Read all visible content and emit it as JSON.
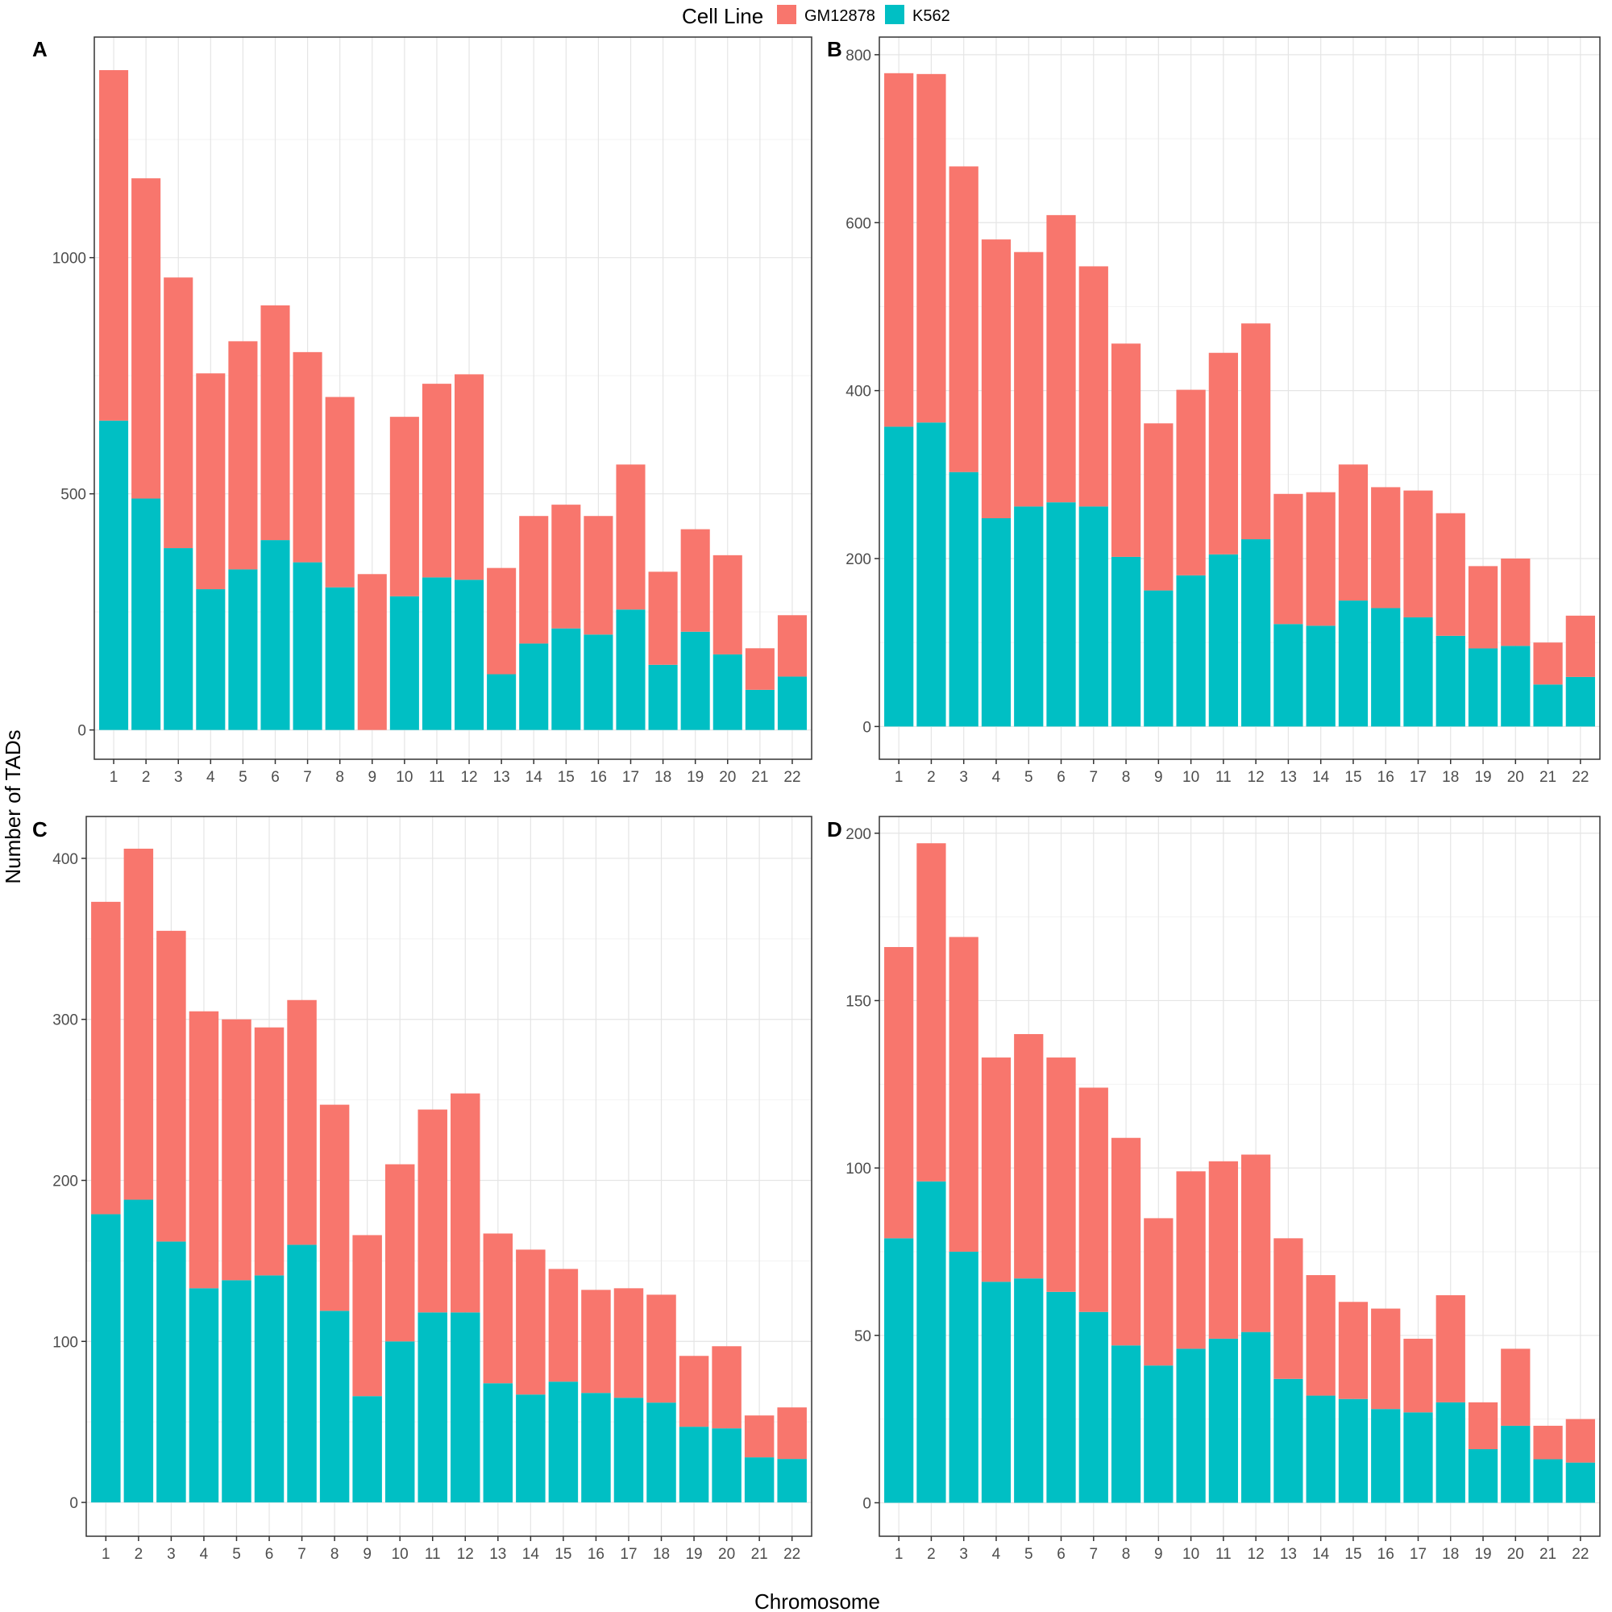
{
  "legend": {
    "title": "Cell Line",
    "items": [
      {
        "label": "GM12878",
        "color": "#F8766D"
      },
      {
        "label": "K562",
        "color": "#00BFC4"
      }
    ]
  },
  "axes": {
    "xlabel": "Chromosome",
    "ylabel": "Number of TADs"
  },
  "chart_data": [
    {
      "panel": "A",
      "type": "bar",
      "stacked": true,
      "categories": [
        "1",
        "2",
        "3",
        "4",
        "5",
        "6",
        "7",
        "8",
        "9",
        "10",
        "11",
        "12",
        "13",
        "14",
        "15",
        "16",
        "17",
        "18",
        "19",
        "20",
        "21",
        "22"
      ],
      "series": [
        {
          "name": "K562",
          "color": "#00BFC4",
          "values": [
            655,
            490,
            385,
            298,
            340,
            402,
            355,
            302,
            0,
            283,
            323,
            318,
            118,
            183,
            215,
            202,
            255,
            138,
            208,
            160,
            85,
            113
          ]
        },
        {
          "name": "GM12878",
          "color": "#F8766D",
          "values": [
            742,
            678,
            573,
            457,
            483,
            497,
            445,
            403,
            330,
            380,
            410,
            435,
            225,
            270,
            262,
            251,
            307,
            197,
            217,
            210,
            88,
            130
          ]
        }
      ],
      "ylim": [
        -62,
        1467
      ],
      "yticks": [
        0,
        500,
        1000
      ],
      "grid": true
    },
    {
      "panel": "B",
      "type": "bar",
      "stacked": true,
      "categories": [
        "1",
        "2",
        "3",
        "4",
        "5",
        "6",
        "7",
        "8",
        "9",
        "10",
        "11",
        "12",
        "13",
        "14",
        "15",
        "16",
        "17",
        "18",
        "19",
        "20",
        "21",
        "22"
      ],
      "series": [
        {
          "name": "K562",
          "color": "#00BFC4",
          "values": [
            357,
            362,
            303,
            248,
            262,
            267,
            262,
            202,
            162,
            180,
            205,
            223,
            122,
            120,
            150,
            141,
            130,
            108,
            93,
            96,
            50,
            59
          ]
        },
        {
          "name": "GM12878",
          "color": "#F8766D",
          "values": [
            421,
            415,
            364,
            332,
            303,
            342,
            286,
            254,
            199,
            221,
            240,
            257,
            155,
            159,
            162,
            144,
            151,
            146,
            98,
            104,
            50,
            73
          ]
        }
      ],
      "ylim": [
        -39,
        821
      ],
      "yticks": [
        0,
        200,
        400,
        600,
        800
      ],
      "grid": true
    },
    {
      "panel": "C",
      "type": "bar",
      "stacked": true,
      "categories": [
        "1",
        "2",
        "3",
        "4",
        "5",
        "6",
        "7",
        "8",
        "9",
        "10",
        "11",
        "12",
        "13",
        "14",
        "15",
        "16",
        "17",
        "18",
        "19",
        "20",
        "21",
        "22"
      ],
      "series": [
        {
          "name": "K562",
          "color": "#00BFC4",
          "values": [
            179,
            188,
            162,
            133,
            138,
            141,
            160,
            119,
            66,
            100,
            118,
            118,
            74,
            67,
            75,
            68,
            65,
            62,
            47,
            46,
            28,
            27
          ]
        },
        {
          "name": "GM12878",
          "color": "#F8766D",
          "values": [
            194,
            218,
            193,
            172,
            162,
            154,
            152,
            128,
            100,
            110,
            126,
            136,
            93,
            90,
            70,
            64,
            68,
            67,
            44,
            51,
            26,
            32
          ]
        }
      ],
      "ylim": [
        -21,
        426
      ],
      "yticks": [
        0,
        100,
        200,
        300,
        400
      ],
      "grid": true
    },
    {
      "panel": "D",
      "type": "bar",
      "stacked": true,
      "categories": [
        "1",
        "2",
        "3",
        "4",
        "5",
        "6",
        "7",
        "8",
        "9",
        "10",
        "11",
        "12",
        "13",
        "14",
        "15",
        "16",
        "17",
        "18",
        "19",
        "20",
        "21",
        "22"
      ],
      "series": [
        {
          "name": "K562",
          "color": "#00BFC4",
          "values": [
            79,
            96,
            75,
            66,
            67,
            63,
            57,
            47,
            41,
            46,
            49,
            51,
            37,
            32,
            31,
            28,
            27,
            30,
            16,
            23,
            13,
            12
          ]
        },
        {
          "name": "GM12878",
          "color": "#F8766D",
          "values": [
            87,
            101,
            94,
            67,
            73,
            70,
            67,
            62,
            44,
            53,
            53,
            53,
            42,
            36,
            29,
            30,
            22,
            32,
            14,
            23,
            10,
            13
          ]
        }
      ],
      "ylim": [
        -10,
        205
      ],
      "yticks": [
        0,
        50,
        100,
        150,
        200
      ],
      "grid": true
    }
  ]
}
